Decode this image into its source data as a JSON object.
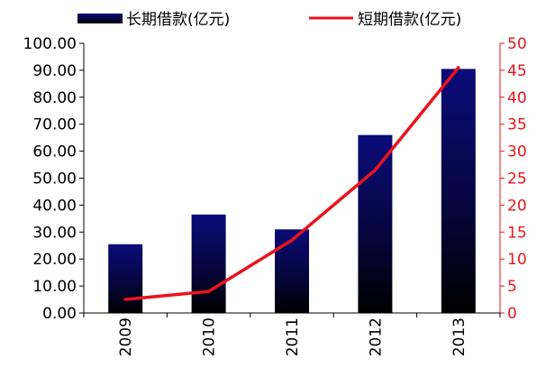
{
  "chart_data": {
    "type": "bar",
    "categories": [
      "2009",
      "2010",
      "2011",
      "2012",
      "2013"
    ],
    "series": [
      {
        "name": "长期借款(亿元)",
        "type": "bar",
        "axis": "left",
        "color": "#0b0b6e",
        "values": [
          25.5,
          36.5,
          31.0,
          66.0,
          90.5
        ]
      },
      {
        "name": "短期借款(亿元)",
        "type": "line",
        "axis": "right",
        "color": "#e8141c",
        "values": [
          2.5,
          4.0,
          13.5,
          26.5,
          45.5
        ]
      }
    ],
    "y_left": {
      "lim": [
        0,
        100
      ],
      "ticks": [
        0,
        10,
        20,
        30,
        40,
        50,
        60,
        70,
        80,
        90,
        100
      ],
      "tick_labels": [
        "0.00",
        "10.00",
        "20.00",
        "30.00",
        "40.00",
        "50.00",
        "60.00",
        "70.00",
        "80.00",
        "90.00",
        "100.00"
      ],
      "color": "#000000"
    },
    "y_right": {
      "lim": [
        0,
        50
      ],
      "ticks": [
        0,
        5,
        10,
        15,
        20,
        25,
        30,
        35,
        40,
        45,
        50
      ],
      "tick_labels": [
        "0",
        "5",
        "10",
        "15",
        "20",
        "25",
        "30",
        "35",
        "40",
        "45",
        "50"
      ],
      "color": "#e8141c"
    },
    "x_tick_rotation": "vertical",
    "legend_position": "top",
    "grid": false,
    "title": "",
    "xlabel": "",
    "ylabel": ""
  }
}
